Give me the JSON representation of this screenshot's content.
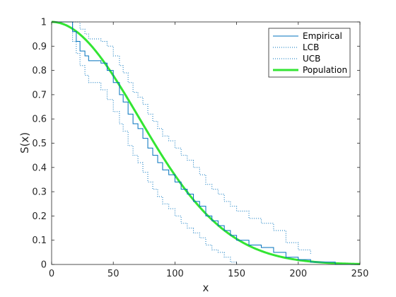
{
  "chart_data": {
    "type": "line",
    "title": "",
    "xlabel": "x",
    "ylabel": "S(x)",
    "xlim": [
      0,
      250
    ],
    "ylim": [
      0,
      1
    ],
    "xticks": [
      0,
      50,
      100,
      150,
      200,
      250
    ],
    "yticks": [
      0,
      0.1,
      0.2,
      0.3,
      0.4,
      0.5,
      0.6,
      0.7,
      0.8,
      0.9,
      1
    ],
    "grid": false,
    "legend_position": "top-right",
    "series": [
      {
        "name": "Empirical",
        "style": "step",
        "line": "solid",
        "color": "#0072BD",
        "x": [
          0,
          17,
          20,
          23,
          27,
          30,
          40,
          45,
          50,
          55,
          58,
          62,
          66,
          70,
          74,
          78,
          82,
          86,
          90,
          95,
          100,
          105,
          110,
          115,
          120,
          125,
          130,
          135,
          140,
          145,
          150,
          160,
          170,
          180,
          190,
          200,
          210,
          230,
          250
        ],
        "y": [
          1,
          0.96,
          0.92,
          0.88,
          0.86,
          0.84,
          0.83,
          0.8,
          0.75,
          0.7,
          0.67,
          0.62,
          0.58,
          0.56,
          0.52,
          0.48,
          0.45,
          0.42,
          0.39,
          0.37,
          0.34,
          0.31,
          0.29,
          0.26,
          0.24,
          0.2,
          0.18,
          0.16,
          0.14,
          0.12,
          0.1,
          0.08,
          0.07,
          0.05,
          0.03,
          0.02,
          0.01,
          0,
          0
        ]
      },
      {
        "name": "LCB",
        "style": "step",
        "line": "dotted",
        "color": "#0072BD",
        "x": [
          0,
          17,
          20,
          23,
          27,
          30,
          40,
          45,
          50,
          55,
          58,
          62,
          66,
          70,
          74,
          78,
          82,
          86,
          90,
          95,
          100,
          105,
          110,
          115,
          120,
          125,
          130,
          135,
          140,
          145,
          150
        ],
        "y": [
          1,
          0.92,
          0.87,
          0.82,
          0.78,
          0.75,
          0.72,
          0.68,
          0.63,
          0.58,
          0.55,
          0.49,
          0.45,
          0.42,
          0.38,
          0.34,
          0.31,
          0.28,
          0.25,
          0.23,
          0.2,
          0.17,
          0.15,
          0.13,
          0.11,
          0.08,
          0.06,
          0.05,
          0.03,
          0.01,
          0
        ]
      },
      {
        "name": "UCB",
        "style": "step",
        "line": "dotted",
        "color": "#0072BD",
        "x": [
          0,
          17,
          20,
          23,
          27,
          30,
          40,
          45,
          50,
          55,
          58,
          62,
          66,
          70,
          74,
          78,
          82,
          86,
          90,
          95,
          100,
          105,
          110,
          115,
          120,
          125,
          130,
          135,
          140,
          145,
          150,
          160,
          170,
          180,
          190,
          200,
          210
        ],
        "y": [
          1,
          1,
          1,
          0.97,
          0.95,
          0.93,
          0.92,
          0.9,
          0.86,
          0.82,
          0.79,
          0.75,
          0.71,
          0.69,
          0.66,
          0.62,
          0.59,
          0.56,
          0.53,
          0.51,
          0.48,
          0.45,
          0.43,
          0.4,
          0.37,
          0.33,
          0.31,
          0.29,
          0.26,
          0.24,
          0.22,
          0.19,
          0.17,
          0.14,
          0.09,
          0.06,
          0.04
        ]
      },
      {
        "name": "Population",
        "style": "line",
        "line": "solid",
        "color": "#33e533",
        "weibull": {
          "scale": 100,
          "shape": 2
        }
      }
    ]
  },
  "colors": {
    "axes": "#262626",
    "background": "#ffffff",
    "legend_border": "#262626"
  }
}
